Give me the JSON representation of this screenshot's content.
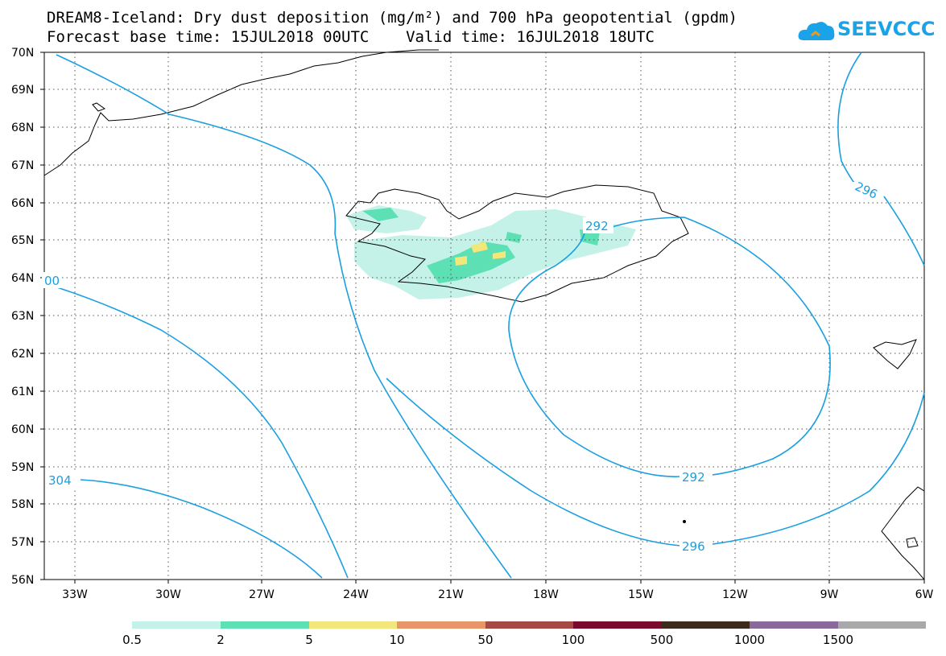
{
  "title_line1": "DREAM8-Iceland: Dry dust deposition (mg/m²) and 700 hPa geopotential (gpdm)",
  "title_line2": "Forecast base time: 15JUL2018 00UTC    Valid time: 16JUL2018 18UTC",
  "logo_text": "SEEVCCC",
  "latitudes": [
    "70N",
    "69N",
    "68N",
    "67N",
    "66N",
    "65N",
    "64N",
    "63N",
    "62N",
    "61N",
    "60N",
    "59N",
    "58N",
    "57N",
    "56N"
  ],
  "longitudes": [
    "33W",
    "30W",
    "27W",
    "24W",
    "21W",
    "18W",
    "15W",
    "12W",
    "9W",
    "6W"
  ],
  "contour_labels": [
    "296",
    "292",
    "00",
    "304",
    "292",
    "296"
  ],
  "legend": {
    "labels": [
      "0.5",
      "2",
      "5",
      "10",
      "50",
      "100",
      "500",
      "1000",
      "1500"
    ],
    "colors": [
      "#c4f2e8",
      "#5de0b3",
      "#f3e67a",
      "#e8956a",
      "#a54a44",
      "#7a0b2e",
      "#3c2a1c",
      "#8a6a9a",
      "#a9a9a9"
    ]
  },
  "colors": {
    "contour": "#1a9fe0",
    "coast": "#000000"
  }
}
